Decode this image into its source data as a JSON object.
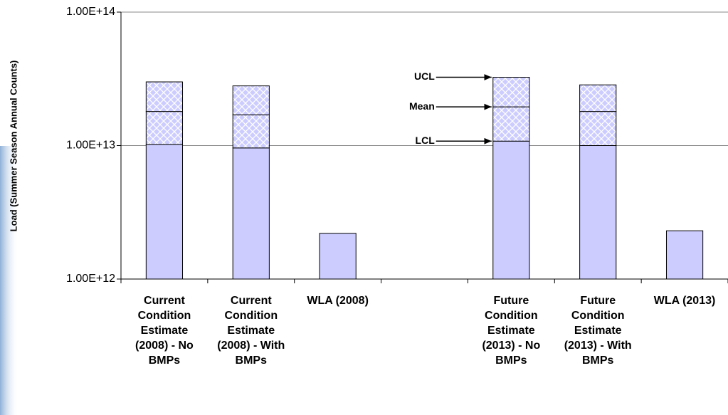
{
  "chart_data": {
    "type": "bar",
    "y_label": "Load (Summer Season Annual Counts)",
    "categories": [
      "Current Condition Estimate (2008) - No BMPs",
      "Current Condition Estimate (2008) - With BMPs",
      "WLA (2008)",
      null,
      "Future Condition Estimate (2013) - No BMPs",
      "Future Condition Estimate (2013) - With BMPs",
      "WLA (2013)"
    ],
    "series": [
      {
        "name": "LCL",
        "color": "#ccccff",
        "hatch": false,
        "values": [
          10200000000000.0,
          9600000000000.0,
          2200000000000.0,
          null,
          10800000000000.0,
          10000000000000.0,
          2300000000000.0
        ]
      },
      {
        "name": "Mean",
        "color": "#ccccff",
        "hatch": true,
        "values": [
          18000000000000.0,
          17000000000000.0,
          null,
          null,
          19500000000000.0,
          18000000000000.0,
          null
        ]
      },
      {
        "name": "UCL",
        "color": "#ccccff",
        "hatch": true,
        "values": [
          30000000000000.0,
          28000000000000.0,
          null,
          null,
          32500000000000.0,
          28500000000000.0,
          null
        ]
      }
    ],
    "log_scale": true,
    "ylim": [
      1000000000000.0,
      100000000000000.0
    ],
    "yticks": [
      {
        "value": 1000000000000.0,
        "label": "1.00E+12"
      },
      {
        "value": 10000000000000.0,
        "label": "1.00E+13"
      },
      {
        "value": 100000000000000.0,
        "label": "1.00E+14"
      }
    ],
    "grid": true
  }
}
